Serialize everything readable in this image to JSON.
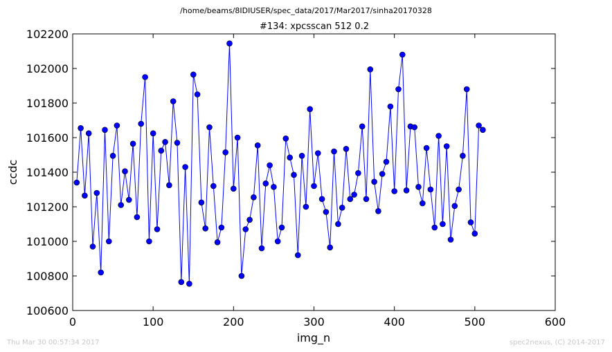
{
  "header": {
    "path": "/home/beams/8IDIUSER/spec_data/2017/Mar2017/sinha20170328",
    "scan_title": "#134: xpcsscan 512 0.2"
  },
  "footer": {
    "timestamp": "Thu Mar 30 00:57:34 2017",
    "credit": "spec2nexus, (C) 2014-2017"
  },
  "chart_data": {
    "type": "line",
    "title": "#134: xpcsscan 512 0.2",
    "xlabel": "img_n",
    "ylabel": "ccdc",
    "xlim": [
      0,
      600
    ],
    "ylim": [
      100600,
      102200
    ],
    "xticks": [
      0,
      100,
      200,
      300,
      400,
      500,
      600
    ],
    "yticks": [
      100600,
      100800,
      101000,
      101200,
      101400,
      101600,
      101800,
      102000,
      102200
    ],
    "grid": false,
    "line_color": "#0000ff",
    "marker": "circle",
    "x": [
      5,
      10,
      15,
      20,
      25,
      30,
      35,
      40,
      45,
      50,
      55,
      60,
      65,
      70,
      75,
      80,
      85,
      90,
      95,
      100,
      105,
      110,
      115,
      120,
      125,
      130,
      135,
      140,
      145,
      150,
      155,
      160,
      165,
      170,
      175,
      180,
      185,
      190,
      195,
      200,
      205,
      210,
      215,
      220,
      225,
      230,
      235,
      240,
      245,
      250,
      255,
      260,
      265,
      270,
      275,
      280,
      285,
      290,
      295,
      300,
      305,
      310,
      315,
      320,
      325,
      330,
      335,
      340,
      345,
      350,
      355,
      360,
      365,
      370,
      375,
      380,
      385,
      390,
      395,
      400,
      405,
      410,
      415,
      420,
      425,
      430,
      435,
      440,
      445,
      450,
      455,
      460,
      465,
      470,
      475,
      480,
      485,
      490,
      495,
      500,
      505,
      510
    ],
    "y": [
      101340,
      101655,
      101265,
      101625,
      100970,
      101280,
      100820,
      101645,
      101000,
      101495,
      101670,
      101210,
      101405,
      101240,
      101565,
      101140,
      101680,
      101950,
      101000,
      101625,
      101070,
      101525,
      101575,
      101325,
      101810,
      101570,
      100765,
      101430,
      100755,
      101965,
      101850,
      101225,
      101075,
      101660,
      101320,
      100995,
      101080,
      101515,
      102145,
      101305,
      101600,
      100800,
      101070,
      101125,
      101255,
      101555,
      100960,
      101335,
      101440,
      101315,
      101000,
      101080,
      101595,
      101485,
      101385,
      100920,
      101495,
      101200,
      101765,
      101320,
      101510,
      101245,
      101170,
      100965,
      101520,
      101100,
      101195,
      101535,
      101245,
      101270,
      101395,
      101665,
      101245,
      101995,
      101345,
      101175,
      101390,
      101460,
      101780,
      101290,
      101880,
      102080,
      101295,
      101665,
      101660,
      101315,
      101220,
      101540,
      101300,
      101080,
      101610,
      101100,
      101550,
      101010,
      101205,
      101300,
      101495,
      101880,
      101110,
      101045,
      101670,
      101645
    ]
  }
}
